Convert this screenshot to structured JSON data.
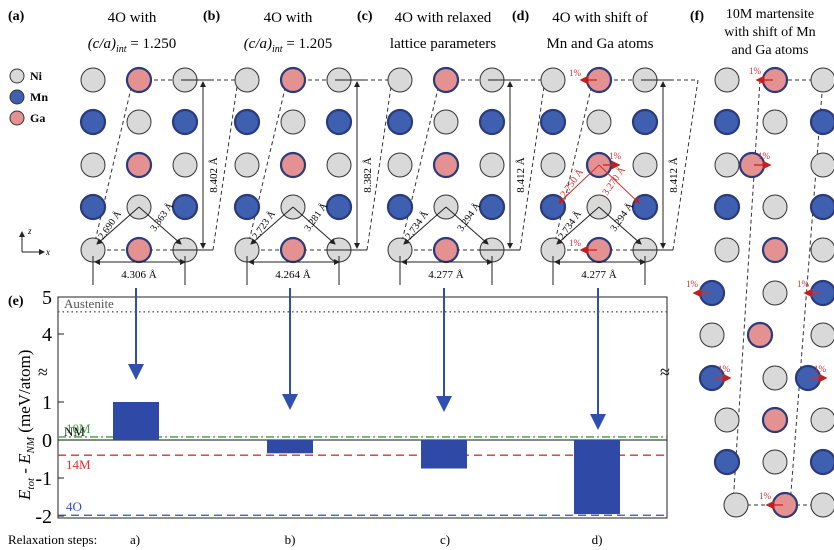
{
  "panels": {
    "a": {
      "letter": "(a)",
      "title_line1": "4O with",
      "title_line2_pre": "(c/a)",
      "title_line2_sub": "int",
      "title_line2_post": " = 1.250",
      "width": "4.306 Å",
      "height": "8.402 Å",
      "d1": "2.690 Å",
      "d2": "3.363 Å"
    },
    "b": {
      "letter": "(b)",
      "title_line1": "4O with",
      "title_line2_pre": "(c/a)",
      "title_line2_sub": "int",
      "title_line2_post": " = 1.205",
      "width": "4.264 Å",
      "height": "8.382 Å",
      "d1": "2.723 Å",
      "d2": "3.281 Å"
    },
    "c": {
      "letter": "(c)",
      "title_line1": "4O with relaxed",
      "title_line2": "lattice parameters",
      "width": "4.277 Å",
      "height": "8.412 Å",
      "d1": "2.734 Å",
      "d2": "3.294 Å"
    },
    "d": {
      "letter": "(d)",
      "title_line1": "4O with shift of",
      "title_line2": "Mn and Ga atoms",
      "width": "4.277 Å",
      "height": "8.412 Å",
      "d1": "2.734 Å",
      "d2": "3.294 Å",
      "d3": "2.750 Å",
      "d4": "3.270 Å",
      "shift": "1%"
    },
    "f": {
      "letter": "(f)",
      "title_line1": "10M martensite",
      "title_line2": "with shift of Mn",
      "title_line3": "and Ga atoms",
      "shift": "1%"
    }
  },
  "legend": {
    "ni": "Ni",
    "mn": "Mn",
    "ga": "Ga",
    "axis_z": "z",
    "axis_x": "x"
  },
  "colors": {
    "ni": "#d9d9d9",
    "mn": "#3f5fb0",
    "ga": "#e39191",
    "ring": "#2a3a7a",
    "bar": "#2f4aa6",
    "red": "#d03030"
  },
  "chart_data": {
    "type": "bar",
    "panel_letter": "(e)",
    "ylabel_parts": [
      "E",
      "tot",
      " - E",
      "NM",
      " (meV/atom)"
    ],
    "xlabel": "Relaxation steps:",
    "categories": [
      "a)",
      "b)",
      "c)",
      "d)"
    ],
    "values": [
      1.0,
      -0.35,
      -0.75,
      -1.95
    ],
    "yticks": [
      "5",
      "4",
      "1",
      "0",
      "-1",
      "-2"
    ],
    "broken_axis": true,
    "reference_lines": [
      {
        "label": "Austenite",
        "value": 4.6,
        "color": "#555555",
        "style": "dotted"
      },
      {
        "label": "10M",
        "value": 0.08,
        "color": "#3aa03a",
        "style": "dashdot"
      },
      {
        "label": "NM",
        "value": 0.0,
        "color": "#111111",
        "style": "solid"
      },
      {
        "label": "14M",
        "value": -0.4,
        "color": "#e03030",
        "style": "dashed"
      },
      {
        "label": "4O",
        "value": -1.98,
        "color": "#3050c0",
        "style": "dashed"
      }
    ]
  }
}
